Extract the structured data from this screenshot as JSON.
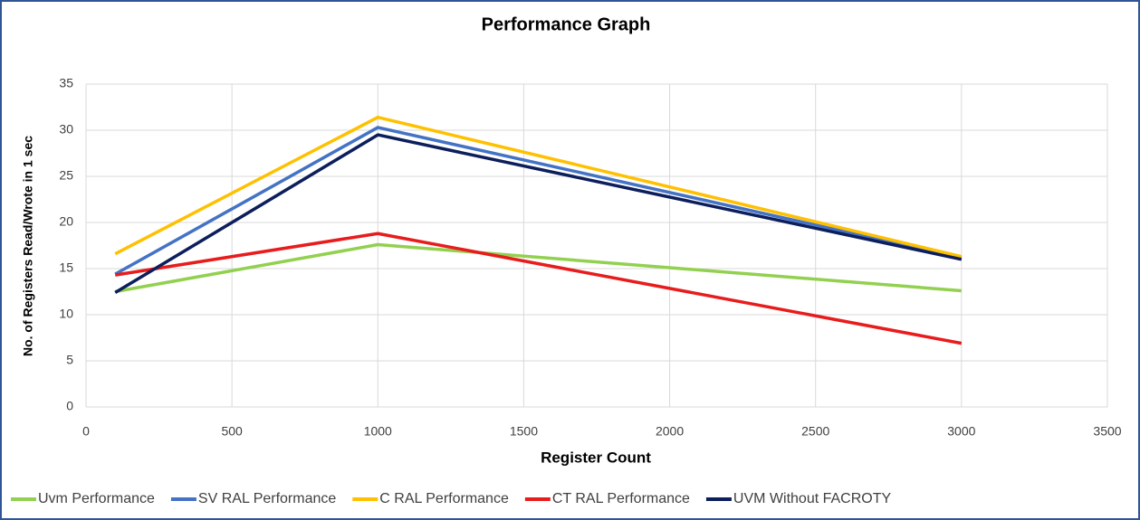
{
  "chart_data": {
    "type": "line",
    "title": "Performance Graph",
    "x_label": "Register Count",
    "y_label": "No. of Registers Read/Wrote  in 1 sec",
    "x": [
      100,
      1000,
      3000
    ],
    "series": [
      {
        "name": "Uvm Performance",
        "color": "#92d050",
        "values": [
          12.5,
          17.6,
          12.6
        ]
      },
      {
        "name": "SV RAL Performance",
        "color": "#4472c4",
        "values": [
          14.4,
          30.3,
          16.2
        ]
      },
      {
        "name": "C RAL Performance",
        "color": "#ffc000",
        "values": [
          16.6,
          31.4,
          16.3
        ]
      },
      {
        "name": "CT RAL Performance",
        "color": "#e81c1c",
        "values": [
          14.3,
          18.8,
          6.9
        ]
      },
      {
        "name": "UVM Without FACROTY",
        "color": "#0c1e5b",
        "values": [
          12.4,
          29.5,
          16.0
        ]
      }
    ],
    "xlim": [
      0,
      3500
    ],
    "xticks": [
      0,
      500,
      1000,
      1500,
      2000,
      2500,
      3000,
      3500
    ],
    "ylim": [
      0,
      35
    ],
    "yticks": [
      0,
      5,
      10,
      15,
      20,
      25,
      30,
      35
    ],
    "grid": true,
    "legend": "bottom"
  }
}
